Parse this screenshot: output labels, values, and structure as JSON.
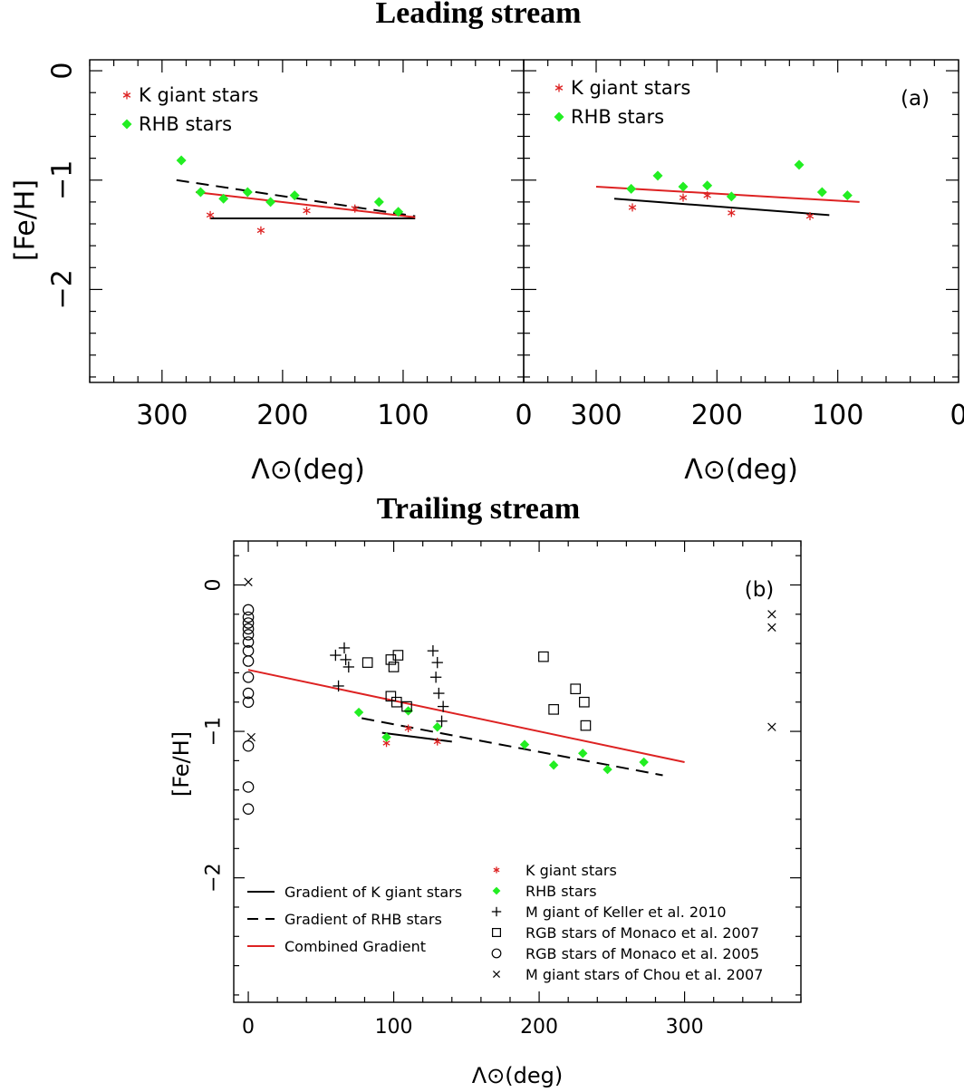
{
  "figure": {
    "leading_title": "Leading stream",
    "trailing_title": "Trailing stream"
  },
  "chart_data": [
    {
      "id": "leading-left",
      "type": "scatter",
      "title": "Leading stream",
      "xlabel": "Λ⊙(deg)",
      "ylabel": "[Fe/H]",
      "xlim": [
        360,
        0
      ],
      "ylim": [
        -2.85,
        0.1
      ],
      "xticks": [
        300,
        200,
        100,
        0
      ],
      "yticks": [
        0,
        -1,
        -2
      ],
      "ytick_labels": [
        "0",
        "−1",
        "−2"
      ],
      "panel_tag": "",
      "legend": [
        {
          "label": "K giant stars",
          "marker": "asterisk",
          "color": "#dd2222"
        },
        {
          "label": "RHB stars",
          "marker": "diamond",
          "color": "#22ee22"
        }
      ],
      "series": [
        {
          "name": "K giant stars",
          "marker": "asterisk",
          "color": "#dd2222",
          "points": [
            [
              260,
              -1.32
            ],
            [
              218,
              -1.46
            ],
            [
              180,
              -1.28
            ],
            [
              140,
              -1.26
            ]
          ]
        },
        {
          "name": "RHB stars",
          "marker": "diamond",
          "color": "#22ee22",
          "points": [
            [
              284,
              -0.82
            ],
            [
              268,
              -1.11
            ],
            [
              249,
              -1.17
            ],
            [
              229,
              -1.11
            ],
            [
              210,
              -1.2
            ],
            [
              190,
              -1.14
            ],
            [
              120,
              -1.2
            ],
            [
              104,
              -1.29
            ]
          ]
        }
      ],
      "lines": [
        {
          "name": "Gradient of K giant stars",
          "style": "solid",
          "color": "#000000",
          "x": [
            260,
            90
          ],
          "y": [
            -1.35,
            -1.35
          ]
        },
        {
          "name": "Gradient of RHB stars",
          "style": "dashed",
          "color": "#000000",
          "x": [
            288,
            90
          ],
          "y": [
            -1.0,
            -1.33
          ]
        },
        {
          "name": "Combined Gradient",
          "style": "solid",
          "color": "#dd2222",
          "x": [
            272,
            90
          ],
          "y": [
            -1.11,
            -1.34
          ]
        }
      ]
    },
    {
      "id": "leading-right",
      "type": "scatter",
      "title": "Leading stream",
      "xlabel": "Λ⊙(deg)",
      "ylabel": "[Fe/H]",
      "xlim": [
        360,
        0
      ],
      "ylim": [
        -2.85,
        0.1
      ],
      "xticks": [
        300,
        200,
        100,
        0
      ],
      "yticks": [
        0,
        -1,
        -2
      ],
      "ytick_labels": [
        "0",
        "−1",
        "−2"
      ],
      "panel_tag": "(a)",
      "legend": [
        {
          "label": "K giant stars",
          "marker": "asterisk",
          "color": "#dd2222"
        },
        {
          "label": "RHB stars",
          "marker": "diamond",
          "color": "#22ee22"
        }
      ],
      "series": [
        {
          "name": "K giant stars",
          "marker": "asterisk",
          "color": "#dd2222",
          "points": [
            [
              270,
              -1.25
            ],
            [
              228,
              -1.16
            ],
            [
              208,
              -1.14
            ],
            [
              188,
              -1.3
            ],
            [
              123,
              -1.33
            ]
          ]
        },
        {
          "name": "RHB stars",
          "marker": "diamond",
          "color": "#22ee22",
          "points": [
            [
              271,
              -1.08
            ],
            [
              249,
              -0.96
            ],
            [
              228,
              -1.06
            ],
            [
              208,
              -1.05
            ],
            [
              188,
              -1.15
            ],
            [
              132,
              -0.86
            ],
            [
              113,
              -1.11
            ],
            [
              92,
              -1.14
            ]
          ]
        }
      ],
      "lines": [
        {
          "name": "Gradient of K giant stars",
          "style": "solid",
          "color": "#000000",
          "x": [
            285,
            107
          ],
          "y": [
            -1.17,
            -1.32
          ]
        },
        {
          "name": "Combined Gradient",
          "style": "solid",
          "color": "#dd2222",
          "x": [
            300,
            82
          ],
          "y": [
            -1.06,
            -1.2
          ]
        }
      ]
    },
    {
      "id": "trailing",
      "type": "scatter",
      "title": "Trailing stream",
      "xlabel": "Λ⊙(deg)",
      "ylabel": "[Fe/H]",
      "xlim": [
        -10,
        380
      ],
      "ylim": [
        -2.85,
        0.3
      ],
      "xticks": [
        0,
        100,
        200,
        300
      ],
      "yticks": [
        0,
        -1,
        -2
      ],
      "ytick_labels": [
        "0",
        "−1",
        "−2"
      ],
      "panel_tag": "(b)",
      "legend": [
        {
          "label": "Gradient of K giant stars",
          "style": "solid",
          "color": "#000000"
        },
        {
          "label": "Gradient of RHB stars",
          "style": "dashed",
          "color": "#000000"
        },
        {
          "label": "Combined Gradient",
          "style": "solid",
          "color": "#dd2222"
        },
        {
          "label": "K giant stars",
          "marker": "asterisk",
          "color": "#dd2222"
        },
        {
          "label": "RHB stars",
          "marker": "diamond",
          "color": "#22ee22"
        },
        {
          "label": "M giant of Keller et al. 2010",
          "marker": "plus",
          "color": "#000000"
        },
        {
          "label": "RGB stars of Monaco et al. 2007",
          "marker": "square",
          "color": "#000000"
        },
        {
          "label": "RGB stars of Monaco et al. 2005",
          "marker": "circle",
          "color": "#000000"
        },
        {
          "label": "M giant stars of Chou et al. 2007",
          "marker": "cross",
          "color": "#000000"
        }
      ],
      "series": [
        {
          "name": "K giant stars",
          "marker": "asterisk",
          "color": "#dd2222",
          "points": [
            [
              95,
              -1.08
            ],
            [
              110,
              -0.98
            ],
            [
              130,
              -1.07
            ]
          ]
        },
        {
          "name": "RHB stars",
          "marker": "diamond",
          "color": "#22ee22",
          "points": [
            [
              76,
              -0.87
            ],
            [
              95,
              -1.04
            ],
            [
              110,
              -0.86
            ],
            [
              130,
              -0.97
            ],
            [
              190,
              -1.09
            ],
            [
              210,
              -1.23
            ],
            [
              230,
              -1.15
            ],
            [
              247,
              -1.26
            ],
            [
              272,
              -1.21
            ]
          ]
        },
        {
          "name": "M giant of Keller et al. 2010",
          "marker": "plus",
          "color": "#000000",
          "points": [
            [
              60,
              -0.48
            ],
            [
              66,
              -0.43
            ],
            [
              67,
              -0.51
            ],
            [
              69,
              -0.56
            ],
            [
              62,
              -0.69
            ],
            [
              127,
              -0.45
            ],
            [
              130,
              -0.53
            ],
            [
              129,
              -0.63
            ],
            [
              131,
              -0.74
            ],
            [
              134,
              -0.83
            ],
            [
              133,
              -0.93
            ]
          ]
        },
        {
          "name": "RGB stars of Monaco et al. 2007",
          "marker": "square",
          "color": "#000000",
          "points": [
            [
              82,
              -0.53
            ],
            [
              98,
              -0.51
            ],
            [
              100,
              -0.56
            ],
            [
              103,
              -0.48
            ],
            [
              98,
              -0.76
            ],
            [
              102,
              -0.8
            ],
            [
              109,
              -0.83
            ],
            [
              203,
              -0.49
            ],
            [
              210,
              -0.85
            ],
            [
              225,
              -0.71
            ],
            [
              231,
              -0.8
            ],
            [
              232,
              -0.96
            ]
          ]
        },
        {
          "name": "RGB stars of Monaco et al. 2005",
          "marker": "circle",
          "color": "#000000",
          "points": [
            [
              0,
              -0.17
            ],
            [
              0,
              -0.22
            ],
            [
              0,
              -0.26
            ],
            [
              0,
              -0.3
            ],
            [
              0,
              -0.34
            ],
            [
              0,
              -0.39
            ],
            [
              0,
              -0.45
            ],
            [
              0,
              -0.52
            ],
            [
              0,
              -0.63
            ],
            [
              0,
              -0.74
            ],
            [
              0,
              -0.8
            ],
            [
              0,
              -1.1
            ],
            [
              0,
              -1.38
            ],
            [
              0,
              -1.53
            ]
          ]
        },
        {
          "name": "M giant stars of Chou et al. 2007",
          "marker": "cross",
          "color": "#000000",
          "points": [
            [
              0,
              0.02
            ],
            [
              2,
              -1.04
            ],
            [
              360,
              -0.2
            ],
            [
              360,
              -0.29
            ],
            [
              360,
              -0.97
            ]
          ]
        }
      ],
      "lines": [
        {
          "name": "Gradient of K giant stars",
          "style": "solid",
          "color": "#000000",
          "x": [
            92,
            140
          ],
          "y": [
            -1.01,
            -1.07
          ]
        },
        {
          "name": "Gradient of RHB stars",
          "style": "dashed",
          "color": "#000000",
          "x": [
            78,
            285
          ],
          "y": [
            -0.91,
            -1.3
          ]
        },
        {
          "name": "Combined Gradient",
          "style": "solid",
          "color": "#dd2222",
          "x": [
            0,
            300
          ],
          "y": [
            -0.58,
            -1.21
          ]
        }
      ]
    }
  ]
}
